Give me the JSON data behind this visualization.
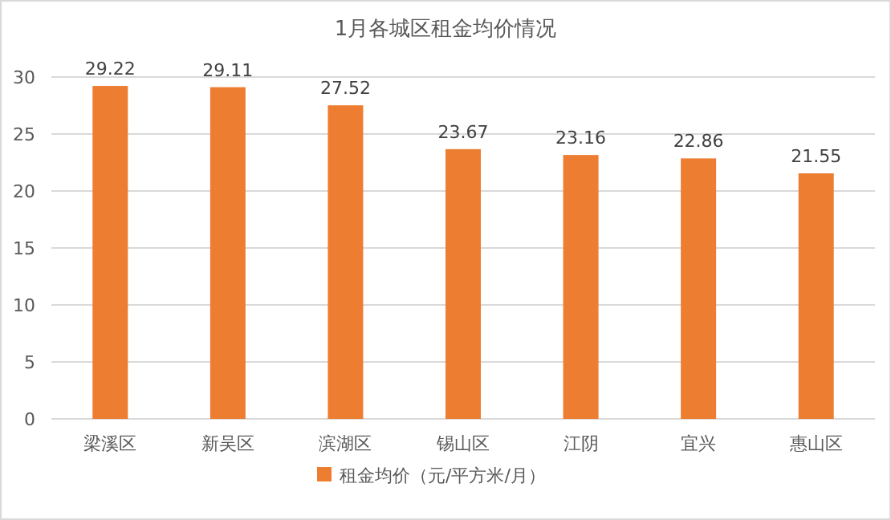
{
  "chart_data": {
    "type": "bar",
    "title": "1月各城区租金均价情况",
    "categories": [
      "梁溪区",
      "新吴区",
      "滨湖区",
      "锡山区",
      "江阴",
      "宜兴",
      "惠山区"
    ],
    "series": [
      {
        "name": "租金均价（元/平方米/月）",
        "color": "#ed7d31",
        "values": [
          29.22,
          29.11,
          27.52,
          23.67,
          23.16,
          22.86,
          21.55
        ]
      }
    ],
    "ylim": [
      0,
      30
    ],
    "yticks": [
      0,
      5,
      10,
      15,
      20,
      25,
      30
    ],
    "grid": "y",
    "legend": "bottom",
    "data_labels": true
  }
}
